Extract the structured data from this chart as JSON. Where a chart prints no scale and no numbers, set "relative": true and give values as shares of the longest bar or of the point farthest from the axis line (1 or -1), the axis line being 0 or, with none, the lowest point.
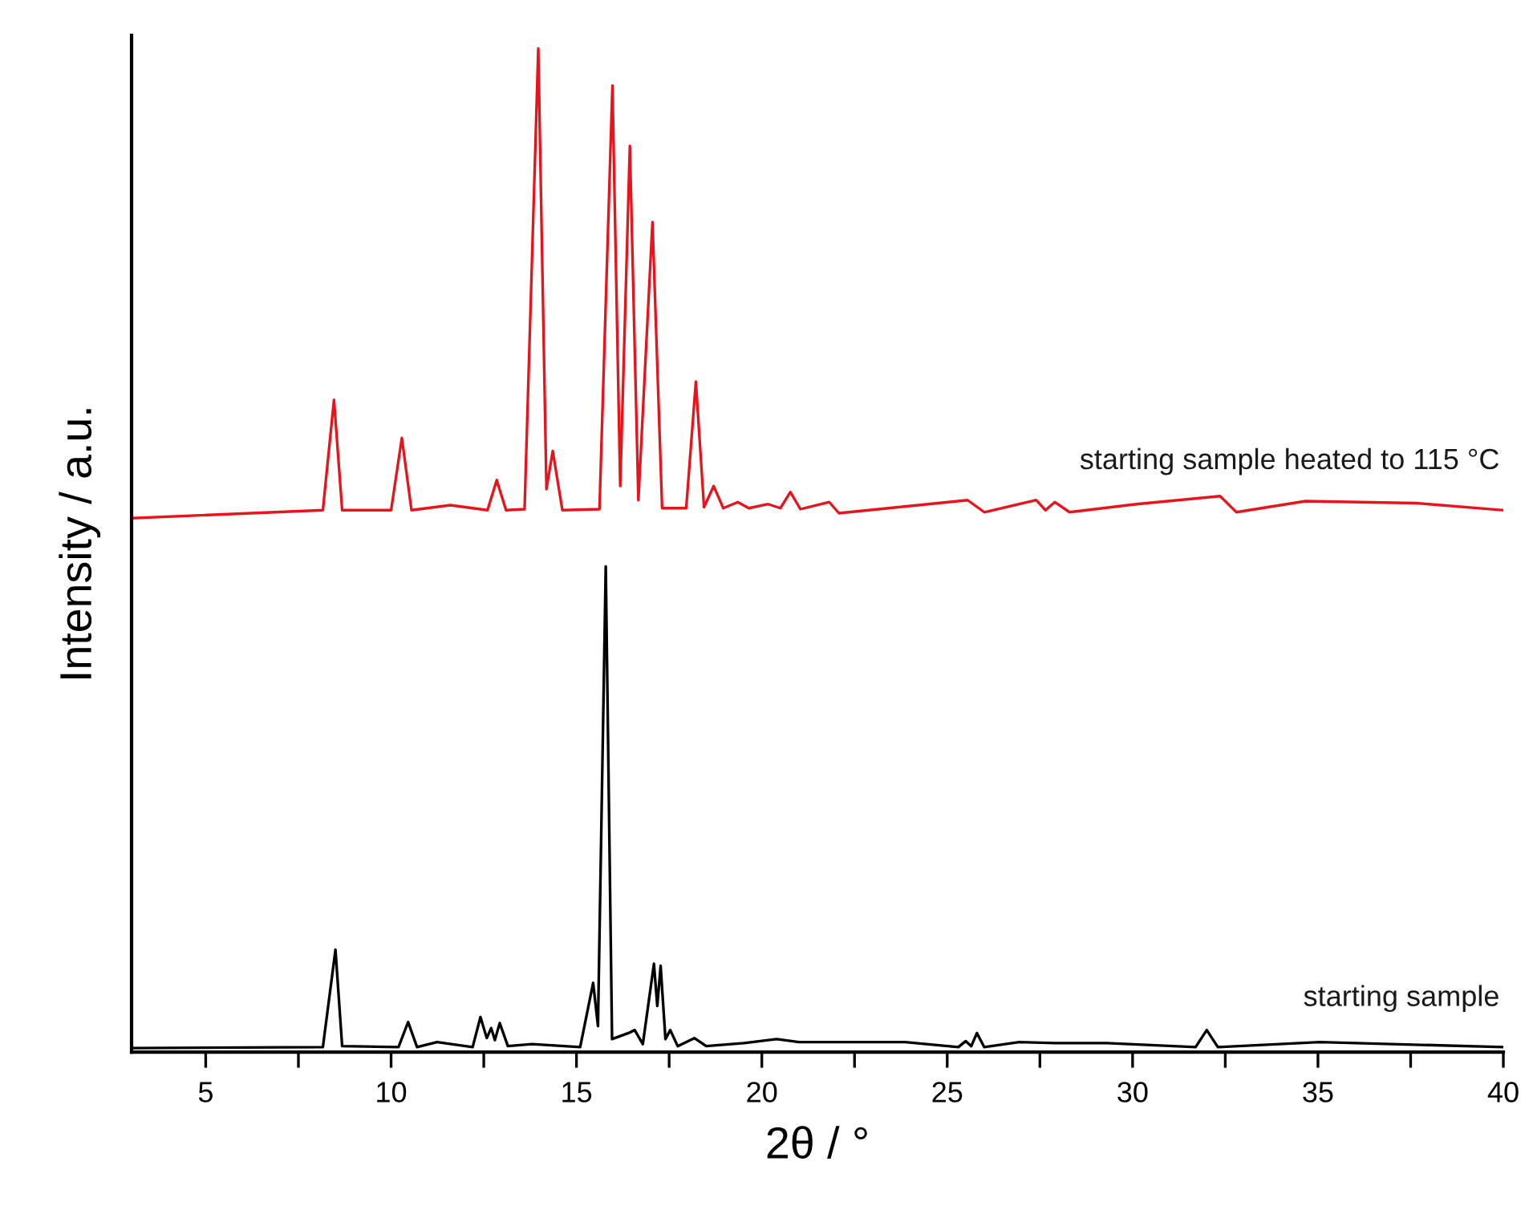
{
  "chart_data": {
    "type": "line",
    "xlabel": "2θ / °",
    "ylabel": "Intensity / a.u.",
    "relative": true,
    "xlim": [
      3,
      40
    ],
    "xticks": [
      5,
      {
        "value": 7.5,
        "label": null
      },
      10,
      {
        "value": 12.5,
        "label": null
      },
      15,
      {
        "value": 17.5,
        "label": null
      },
      20,
      {
        "value": 22.5,
        "label": null
      },
      25,
      {
        "value": 27.5,
        "label": null
      },
      30,
      {
        "value": 32.5,
        "label": null
      },
      35,
      {
        "value": 37.5,
        "label": null
      },
      40
    ],
    "grid": false,
    "legend": false,
    "marker": "none",
    "line_style": "solid",
    "series": [
      {
        "name": "starting sample",
        "color": "#000000",
        "x": [
          3,
          8.16,
          8.5,
          8.68,
          10.2,
          10.46,
          10.7,
          11.24,
          12.2,
          12.41,
          12.58,
          12.7,
          12.8,
          12.93,
          13.15,
          13.8,
          15.1,
          15.45,
          15.58,
          15.79,
          15.96,
          16.4,
          16.57,
          16.79,
          17.09,
          17.18,
          17.27,
          17.4,
          17.53,
          17.73,
          18.18,
          18.5,
          19.52,
          20.4,
          21.0,
          23.86,
          25.3,
          25.5,
          25.65,
          25.8,
          26.0,
          26.94,
          27.9,
          29.3,
          31.7,
          32.0,
          32.3,
          35.05,
          40
        ],
        "values": [
          0.004,
          0.005,
          0.102,
          0.006,
          0.005,
          0.03,
          0.005,
          0.01,
          0.005,
          0.035,
          0.014,
          0.024,
          0.012,
          0.029,
          0.006,
          0.008,
          0.005,
          0.069,
          0.026,
          0.484,
          0.013,
          0.019,
          0.022,
          0.008,
          0.088,
          0.046,
          0.086,
          0.013,
          0.022,
          0.006,
          0.014,
          0.006,
          0.009,
          0.013,
          0.01,
          0.01,
          0.005,
          0.011,
          0.006,
          0.019,
          0.005,
          0.01,
          0.009,
          0.009,
          0.005,
          0.022,
          0.005,
          0.01,
          0.005
        ]
      },
      {
        "name": "starting sample heated to 115 °C",
        "color": "#e8141c",
        "x": [
          3,
          8.16,
          8.46,
          8.68,
          10.0,
          10.29,
          10.55,
          11.6,
          12.6,
          12.85,
          13.1,
          13.6,
          13.97,
          14.19,
          14.36,
          14.62,
          15.62,
          15.97,
          16.18,
          16.44,
          16.67,
          17.05,
          17.31,
          17.96,
          18.22,
          18.44,
          18.7,
          18.96,
          19.35,
          19.65,
          20.17,
          20.5,
          20.77,
          21.04,
          21.82,
          22.08,
          25.55,
          26.0,
          27.4,
          27.65,
          27.9,
          28.3,
          30.1,
          32.36,
          32.8,
          34.66,
          37.65,
          40
        ],
        "values": [
          0.532,
          0.54,
          0.65,
          0.54,
          0.54,
          0.612,
          0.54,
          0.545,
          0.54,
          0.57,
          0.54,
          0.541,
          1.0,
          0.561,
          0.599,
          0.54,
          0.541,
          0.963,
          0.564,
          0.903,
          0.55,
          0.827,
          0.542,
          0.542,
          0.668,
          0.543,
          0.564,
          0.542,
          0.548,
          0.542,
          0.546,
          0.542,
          0.558,
          0.541,
          0.548,
          0.537,
          0.55,
          0.538,
          0.55,
          0.54,
          0.548,
          0.538,
          0.546,
          0.554,
          0.538,
          0.549,
          0.547,
          0.54
        ]
      }
    ]
  }
}
